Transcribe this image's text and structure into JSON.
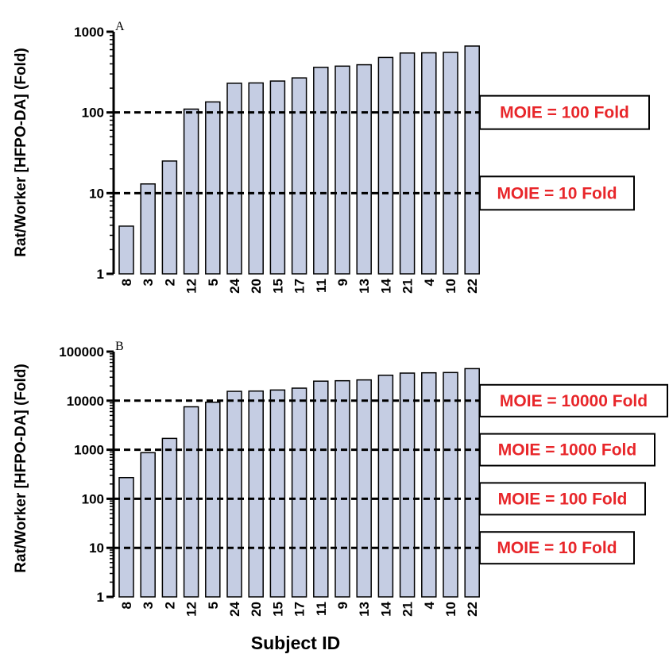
{
  "x_label": "Subject ID",
  "chart_data": [
    {
      "type": "bar",
      "panel_label": "A",
      "ylabel": "Rat/Worker [HFPO-DA] (Fold)",
      "yscale": "log",
      "ylim": [
        1,
        1000
      ],
      "yticks": [
        "1",
        "10",
        "100",
        "1000"
      ],
      "categories": [
        "8",
        "3",
        "2",
        "12",
        "5",
        "24",
        "20",
        "15",
        "17",
        "11",
        "9",
        "13",
        "14",
        "21",
        "4",
        "10",
        "22"
      ],
      "values": [
        3.9,
        13,
        25,
        110,
        135,
        230,
        232,
        245,
        268,
        362,
        375,
        390,
        480,
        545,
        548,
        555,
        665
      ],
      "bar_color": "#c5cde3",
      "reference_lines": [
        {
          "value": 100,
          "label": "MOIE = 100 Fold"
        },
        {
          "value": 10,
          "label": "MOIE = 10 Fold"
        }
      ]
    },
    {
      "type": "bar",
      "panel_label": "B",
      "ylabel": "Rat/Worker [HFPO-DA] (Fold)",
      "yscale": "log",
      "ylim": [
        1,
        100000
      ],
      "yticks": [
        "1",
        "10",
        "100",
        "1000",
        "10000",
        "100000"
      ],
      "categories": [
        "8",
        "3",
        "2",
        "12",
        "5",
        "24",
        "20",
        "15",
        "17",
        "11",
        "9",
        "13",
        "14",
        "21",
        "4",
        "10",
        "22"
      ],
      "values": [
        270,
        870,
        1700,
        7500,
        9300,
        15500,
        15700,
        16500,
        18000,
        25000,
        25500,
        26500,
        33000,
        36500,
        37000,
        37500,
        45000
      ],
      "bar_color": "#c5cde3",
      "reference_lines": [
        {
          "value": 10000,
          "label": "MOIE = 10000 Fold"
        },
        {
          "value": 1000,
          "label": "MOIE = 1000 Fold"
        },
        {
          "value": 100,
          "label": "MOIE = 100 Fold"
        },
        {
          "value": 10,
          "label": "MOIE = 10 Fold"
        }
      ]
    }
  ]
}
